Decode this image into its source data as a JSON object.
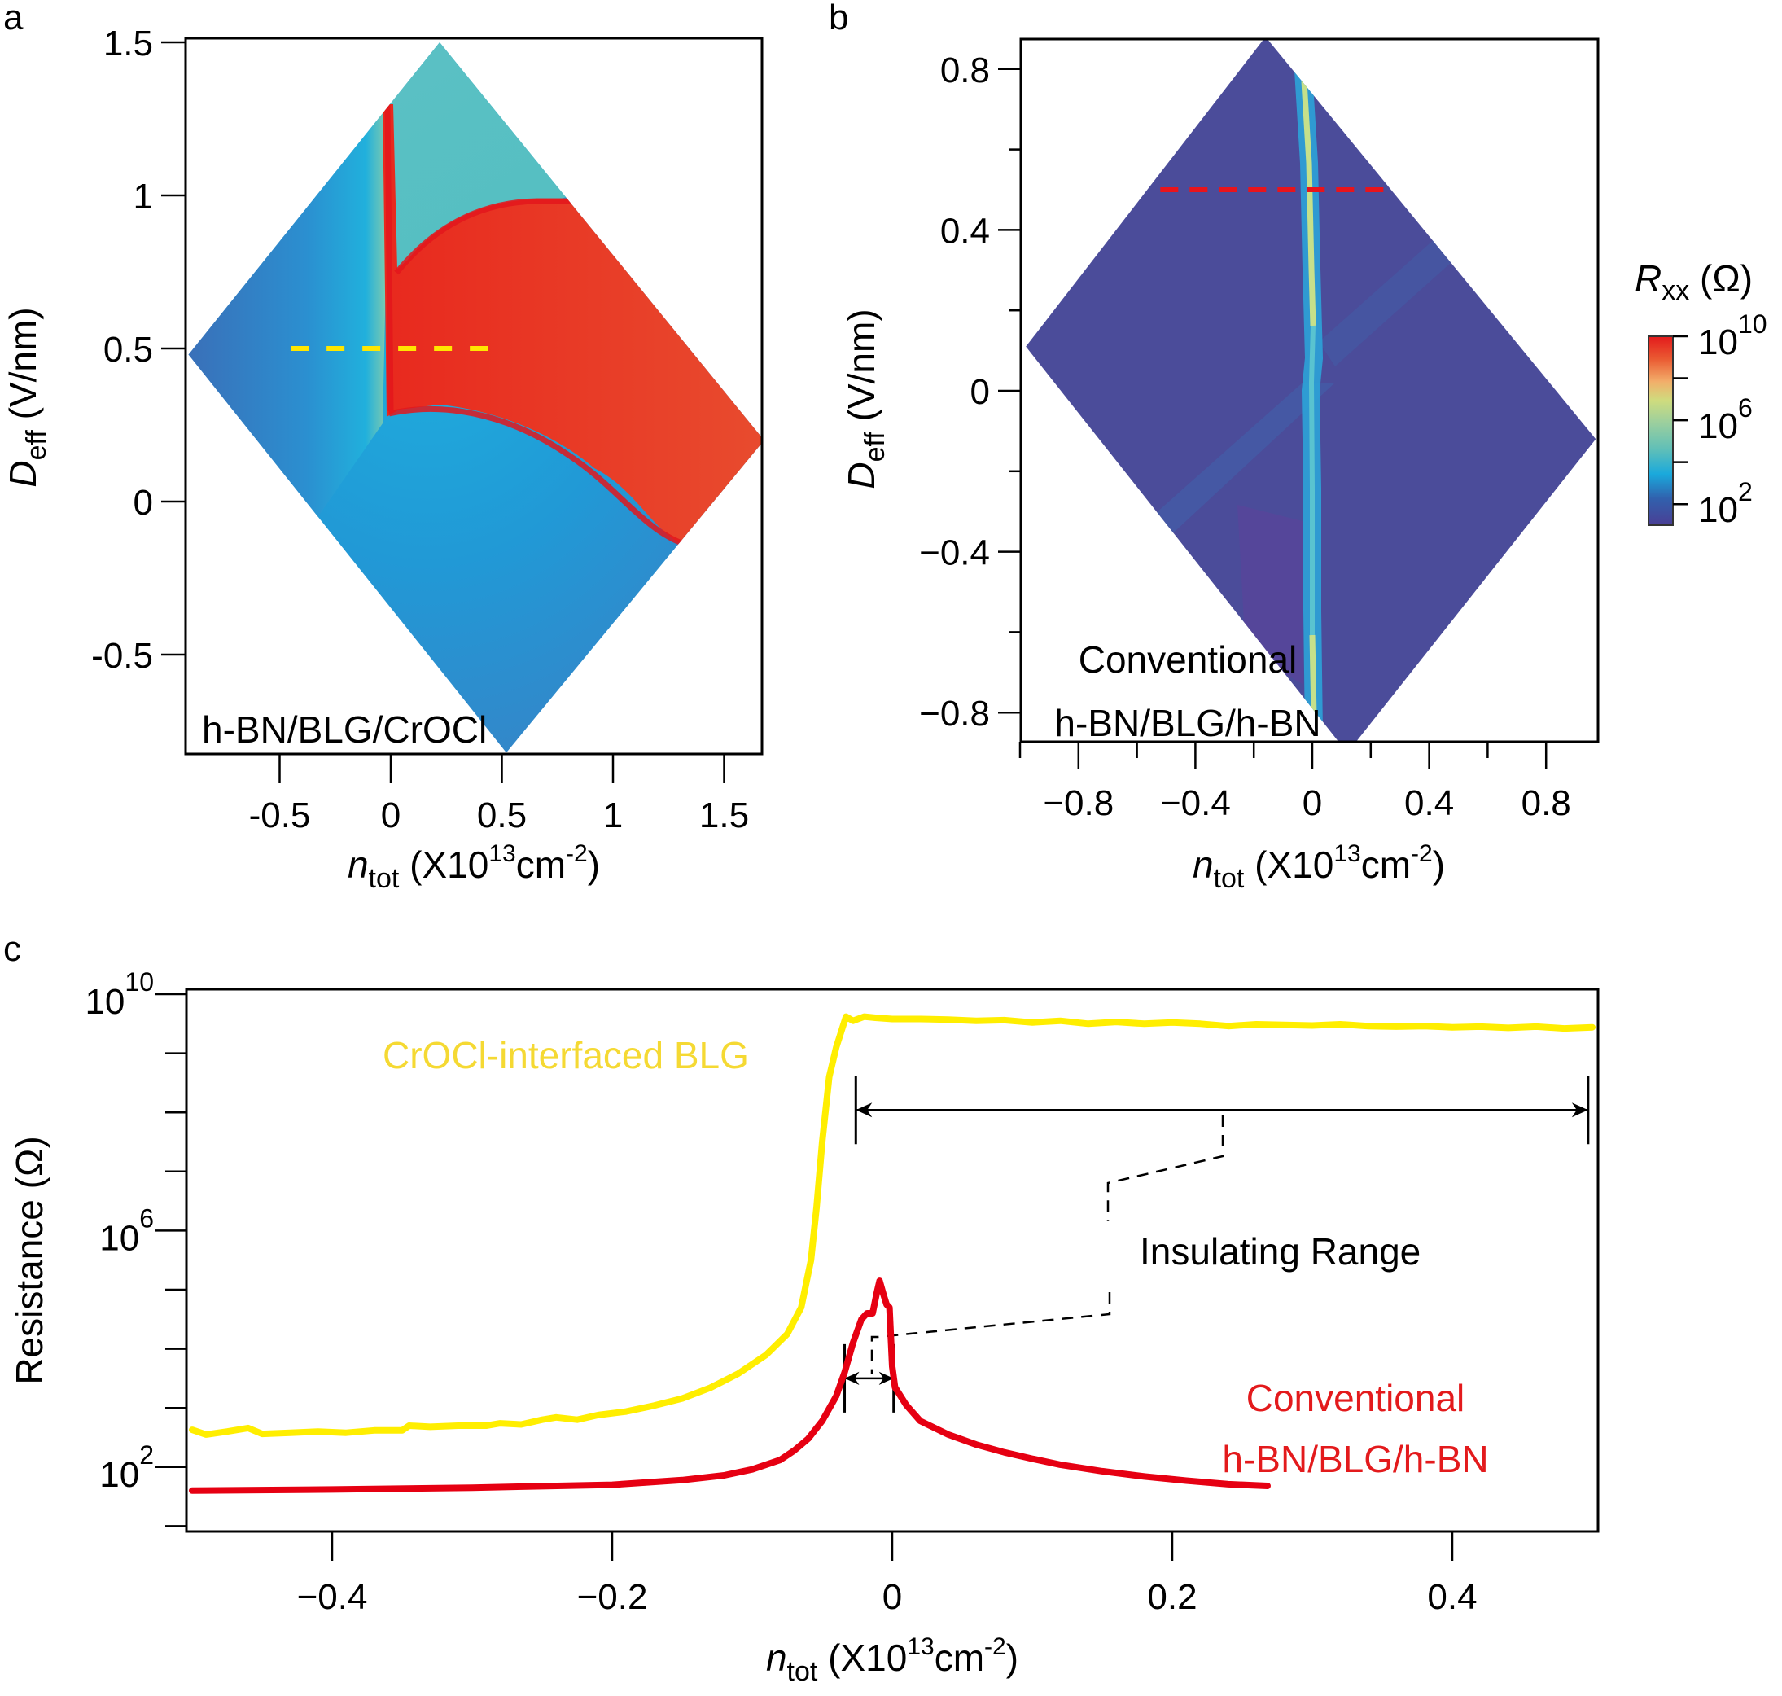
{
  "figure": {
    "panels": {
      "a": {
        "label": "a"
      },
      "b": {
        "label": "b"
      },
      "c": {
        "label": "c"
      }
    },
    "colorbar": {
      "title_main": "R",
      "title_sub": "xx",
      "title_unit": " (Ω)",
      "scale": "log",
      "range": [
        1,
        10
      ],
      "ticks": [
        {
          "base": "10",
          "exp": "10",
          "log": 10
        },
        {
          "base": "10",
          "exp": "6",
          "log": 6
        },
        {
          "base": "10",
          "exp": "2",
          "log": 2
        }
      ],
      "minor_ticks_log": [
        8,
        4
      ],
      "colors": [
        "#4a3f95",
        "#3160ad",
        "#1aa9dc",
        "#6cc0b0",
        "#c4dc82",
        "#f2ae6a",
        "#ea5a32",
        "#e31a1c"
      ]
    }
  },
  "chart_data": [
    {
      "id": "a",
      "type": "heatmap",
      "title": "",
      "annotation": "h-BN/BLG/CrOCl",
      "xlabel": {
        "main": "n",
        "sub": "tot",
        "unit_prefix": " (X10",
        "unit_exp1": "13",
        "unit_mid": "cm",
        "unit_exp2": "-2",
        "unit_suffix": ")"
      },
      "ylabel": {
        "main": "D",
        "sub": "eff",
        "unit": " (V/nm)"
      },
      "xlim": [
        -0.92,
        1.69
      ],
      "ylim": [
        -0.82,
        1.51
      ],
      "xticks": [
        -0.5,
        0,
        0.5,
        1,
        1.5
      ],
      "xtick_labels": [
        "-0.5",
        "0",
        "0.5",
        "1",
        "1.5"
      ],
      "yticks": [
        1.5,
        1,
        0.5,
        0,
        -0.5
      ],
      "ytick_labels": [
        "1.5",
        "1",
        "0.5",
        "0",
        "-0.5"
      ],
      "data_region_vertices": [
        [
          0.22,
          1.5
        ],
        [
          1.68,
          0.2
        ],
        [
          0.52,
          -0.82
        ],
        [
          -0.91,
          0.48
        ]
      ],
      "insulating_region_log_R": 9.6,
      "background_log_R": 2.5,
      "linecut": {
        "D": 0.5,
        "n_range": [
          -0.45,
          0.5
        ],
        "color": "#ffe600",
        "style": "dashed"
      }
    },
    {
      "id": "b",
      "type": "heatmap",
      "title": "",
      "annotation_line1": "Conventional",
      "annotation_line2": "h-BN/BLG/h-BN",
      "xlabel": {
        "main": "n",
        "sub": "tot",
        "unit_prefix": " (X10",
        "unit_exp1": "13",
        "unit_mid": "cm",
        "unit_exp2": "-2",
        "unit_suffix": ")"
      },
      "ylabel": {
        "main": "D",
        "sub": "eff",
        "unit": " (V/nm)"
      },
      "xlim": [
        -1.0,
        0.98
      ],
      "ylim": [
        -0.9,
        0.88
      ],
      "xticks": [
        -0.8,
        -0.4,
        0,
        0.4,
        0.8
      ],
      "xtick_labels": [
        "−0.8",
        "−0.4",
        "0",
        "0.4",
        "0.8"
      ],
      "x_minor_ticks": [
        -1.0,
        -0.6,
        -0.2,
        0.2,
        0.6
      ],
      "yticks": [
        0.8,
        0.4,
        0,
        -0.4,
        -0.8
      ],
      "ytick_labels": [
        "0.8",
        "0.4",
        "0",
        "−0.4",
        "−0.8"
      ],
      "y_minor_ticks": [
        0.6,
        0.2,
        -0.2,
        -0.6
      ],
      "data_region_vertices": [
        [
          -0.16,
          0.88
        ],
        [
          0.97,
          -0.12
        ],
        [
          0.12,
          -0.9
        ],
        [
          -0.98,
          0.11
        ]
      ],
      "cnp_line_log_R": 5.0,
      "background_log_R": 1.3,
      "linecut": {
        "D": 0.5,
        "n_range": [
          -0.52,
          0.25
        ],
        "color": "#e8141c",
        "style": "dashed"
      }
    },
    {
      "id": "c",
      "type": "line",
      "title": "",
      "xlabel": {
        "main": "n",
        "sub": "tot",
        "unit_prefix": " (X10",
        "unit_exp1": "13",
        "unit_mid": "cm",
        "unit_exp2": "-2",
        "unit_suffix": ")"
      },
      "ylabel": "Resistance (Ω)",
      "yscale": "log",
      "xlim": [
        -0.504,
        0.504
      ],
      "ylim_log10": [
        0.93,
        10.08
      ],
      "xticks": [
        -0.4,
        -0.2,
        0,
        0.2,
        0.4
      ],
      "xtick_labels": [
        "−0.4",
        "−0.2",
        "0",
        "0.2",
        "0.4"
      ],
      "yticks": [
        {
          "base": "10",
          "exp": "10",
          "log": 10
        },
        {
          "base": "10",
          "exp": "6",
          "log": 6
        },
        {
          "base": "10",
          "exp": "2",
          "log": 2
        }
      ],
      "y_minor_ticks_log": [
        9,
        8,
        7,
        5,
        4,
        3,
        1
      ],
      "series": [
        {
          "name": "CrOCl-interfaced BLG",
          "color": "#ffee00",
          "label_color": "#f5d933",
          "x": [
            -0.5,
            -0.49,
            -0.475,
            -0.46,
            -0.45,
            -0.43,
            -0.41,
            -0.39,
            -0.37,
            -0.35,
            -0.345,
            -0.33,
            -0.31,
            -0.29,
            -0.28,
            -0.265,
            -0.25,
            -0.24,
            -0.225,
            -0.21,
            -0.19,
            -0.17,
            -0.15,
            -0.13,
            -0.11,
            -0.09,
            -0.075,
            -0.065,
            -0.058,
            -0.054,
            -0.05,
            -0.045,
            -0.04,
            -0.033,
            -0.028,
            -0.02,
            -0.012,
            0.0,
            0.02,
            0.04,
            0.06,
            0.08,
            0.1,
            0.12,
            0.14,
            0.16,
            0.18,
            0.2,
            0.22,
            0.24,
            0.26,
            0.28,
            0.3,
            0.32,
            0.34,
            0.36,
            0.38,
            0.4,
            0.42,
            0.44,
            0.46,
            0.48,
            0.5
          ],
          "log10_y": [
            2.63,
            2.55,
            2.6,
            2.66,
            2.56,
            2.58,
            2.6,
            2.58,
            2.62,
            2.62,
            2.7,
            2.68,
            2.7,
            2.7,
            2.74,
            2.72,
            2.8,
            2.84,
            2.8,
            2.88,
            2.94,
            3.04,
            3.16,
            3.34,
            3.58,
            3.9,
            4.25,
            4.7,
            5.5,
            6.4,
            7.5,
            8.6,
            9.1,
            9.62,
            9.55,
            9.62,
            9.6,
            9.58,
            9.58,
            9.57,
            9.55,
            9.56,
            9.52,
            9.55,
            9.5,
            9.53,
            9.5,
            9.52,
            9.5,
            9.46,
            9.49,
            9.48,
            9.47,
            9.49,
            9.46,
            9.45,
            9.46,
            9.44,
            9.45,
            9.43,
            9.45,
            9.42,
            9.44
          ]
        },
        {
          "name": "Conventional h-BN/BLG/h-BN",
          "label_line1": "Conventional",
          "label_line2": "h-BN/BLG/h-BN",
          "color": "#e60012",
          "label_color": "#e31a1c",
          "x": [
            -0.5,
            -0.4,
            -0.3,
            -0.2,
            -0.15,
            -0.12,
            -0.1,
            -0.08,
            -0.07,
            -0.06,
            -0.05,
            -0.04,
            -0.034,
            -0.028,
            -0.022,
            -0.018,
            -0.014,
            -0.011,
            -0.009,
            -0.006,
            -0.004,
            -0.002,
            0.0,
            0.002,
            0.01,
            0.02,
            0.04,
            0.06,
            0.08,
            0.1,
            0.12,
            0.15,
            0.18,
            0.21,
            0.24,
            0.268
          ],
          "log10_y": [
            1.6,
            1.62,
            1.65,
            1.7,
            1.78,
            1.86,
            1.96,
            2.12,
            2.28,
            2.48,
            2.78,
            3.2,
            3.6,
            4.1,
            4.5,
            4.6,
            4.6,
            4.95,
            5.15,
            4.9,
            4.75,
            4.7,
            3.7,
            3.35,
            3.05,
            2.78,
            2.55,
            2.38,
            2.25,
            2.14,
            2.04,
            1.93,
            1.84,
            1.77,
            1.71,
            1.68
          ]
        }
      ],
      "annotations": {
        "insulating_range_label": "Insulating Range",
        "wide_range_n": [
          -0.026,
          0.497
        ],
        "wide_range_log10_y": 8.04,
        "narrow_range_n": [
          -0.034,
          0.001
        ],
        "narrow_range_log10_y": 3.5
      }
    }
  ]
}
